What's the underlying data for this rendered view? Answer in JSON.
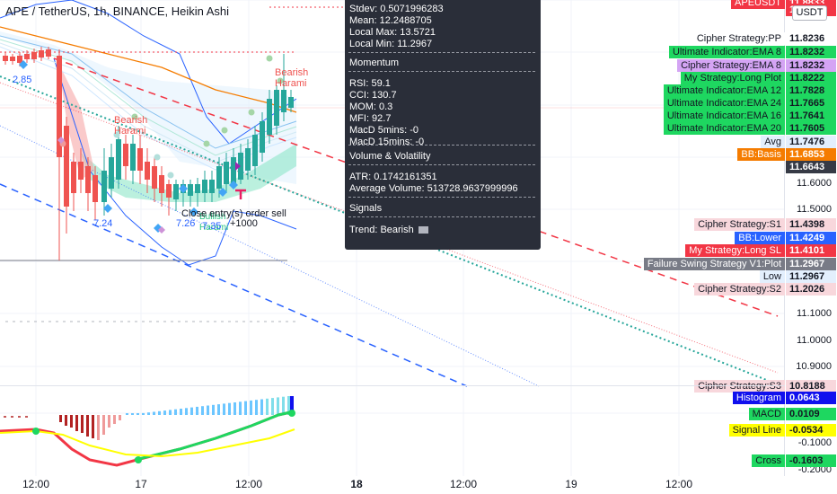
{
  "header": {
    "title": "APE / TetherUS, 1h, BINANCE, Heikin Ashi"
  },
  "tooltip": {
    "stats": [
      "Stdev: 0.5071996283",
      "Mean: 12.2488705",
      "Local Max: 13.5721",
      "Local Min: 11.2967"
    ],
    "momentum_title": "Momentum",
    "momentum": [
      "RSI: 59.1",
      "CCI: 130.7",
      "MOM: 0.3",
      "MFI: 92.7",
      "MacD 5mins: -0",
      "MacD 15mins: -0"
    ],
    "volatility_title": "Volume & Volatility",
    "volatility": [
      "ATR: 0.1742161351",
      "Average Volume: 513728.9637999996"
    ],
    "signals_title": "Signals",
    "trend": "Trend: Bearish"
  },
  "price_scale": {
    "currency_button": "USDT",
    "ticks": [
      "11.6000",
      "11.5000",
      "11.1000",
      "11.0000",
      "10.9000",
      "-0.1000",
      "-0.2000"
    ]
  },
  "right_labels": [
    {
      "text": "APEUSDT",
      "value": "11.8833",
      "label_bg": "#f23645",
      "label_fg": "#ffffff",
      "value_bg": "#f23645",
      "value_fg": "#ffffff"
    },
    {
      "text": "",
      "value": "11.8522",
      "label_bg": "",
      "label_fg": "",
      "value_bg": "#f23645",
      "value_fg": "#ffffff"
    },
    {
      "text": "Cipher Strategy:PP",
      "value": "11.8236",
      "label_bg": "#ffffff",
      "label_fg": "#131722",
      "value_bg": "#ffffff",
      "value_fg": "#131722"
    },
    {
      "text": "Ultimate Indicator:EMA 8",
      "value": "11.8232",
      "label_bg": "#1ed760",
      "label_fg": "#131722",
      "value_bg": "#1ed760",
      "value_fg": "#131722"
    },
    {
      "text": "Cipher Strategy:EMA 8",
      "value": "11.8232",
      "label_bg": "#d4a4f4",
      "label_fg": "#131722",
      "value_bg": "#d4a4f4",
      "value_fg": "#131722"
    },
    {
      "text": "My Strategy:Long Plot",
      "value": "11.8222",
      "label_bg": "#1ed760",
      "label_fg": "#131722",
      "value_bg": "#1ed760",
      "value_fg": "#131722"
    },
    {
      "text": "Ultimate Indicator:EMA 12",
      "value": "11.7828",
      "label_bg": "#1ed760",
      "label_fg": "#131722",
      "value_bg": "#1ed760",
      "value_fg": "#131722"
    },
    {
      "text": "Ultimate Indicator:EMA 24",
      "value": "11.7665",
      "label_bg": "#1ed760",
      "label_fg": "#131722",
      "value_bg": "#1ed760",
      "value_fg": "#131722"
    },
    {
      "text": "Ultimate Indicator:EMA 16",
      "value": "11.7641",
      "label_bg": "#1ed760",
      "label_fg": "#131722",
      "value_bg": "#1ed760",
      "value_fg": "#131722"
    },
    {
      "text": "Ultimate Indicator:EMA 20",
      "value": "11.7605",
      "label_bg": "#1ed760",
      "label_fg": "#131722",
      "value_bg": "#1ed760",
      "value_fg": "#131722"
    },
    {
      "text": "Avg",
      "value": "11.7476",
      "label_bg": "#e3effd",
      "label_fg": "#131722",
      "value_bg": "#e3effd",
      "value_fg": "#131722"
    },
    {
      "text": "BB:Basis",
      "value": "11.6853",
      "label_bg": "#f57c00",
      "label_fg": "#ffffff",
      "value_bg": "#f57c00",
      "value_fg": "#ffffff"
    },
    {
      "text": "",
      "value": "11.6643",
      "label_bg": "",
      "label_fg": "",
      "value_bg": "#363a45",
      "value_fg": "#ffffff"
    },
    {
      "text": "Cipher Strategy:S1",
      "value": "11.4398",
      "label_bg": "#f8d7dc",
      "label_fg": "#131722",
      "value_bg": "#f8d7dc",
      "value_fg": "#131722"
    },
    {
      "text": "BB:Lower",
      "value": "11.4249",
      "label_bg": "#2962ff",
      "label_fg": "#ffffff",
      "value_bg": "#2962ff",
      "value_fg": "#ffffff"
    },
    {
      "text": "My Strategy:Long SL",
      "value": "11.4101",
      "label_bg": "#f23645",
      "label_fg": "#ffffff",
      "value_bg": "#f23645",
      "value_fg": "#ffffff"
    },
    {
      "text": "Failure Swing Strategy V1:Plot",
      "value": "11.2967",
      "label_bg": "#787b86",
      "label_fg": "#ffffff",
      "value_bg": "#787b86",
      "value_fg": "#ffffff"
    },
    {
      "text": "Low",
      "value": "11.2967",
      "label_bg": "#e3effd",
      "label_fg": "#131722",
      "value_bg": "#e3effd",
      "value_fg": "#131722"
    },
    {
      "text": "Cipher Strategy:S2",
      "value": "11.2026",
      "label_bg": "#f8d7dc",
      "label_fg": "#131722",
      "value_bg": "#f8d7dc",
      "value_fg": "#131722"
    },
    {
      "text": "Cipher Strategy:S3",
      "value": "10.8188",
      "label_bg": "#f8d7dc",
      "label_fg": "#131722",
      "value_bg": "#f8d7dc",
      "value_fg": "#131722"
    },
    {
      "text": "Histogram",
      "value": "0.0643",
      "label_bg": "#1010ee",
      "label_fg": "#ffffff",
      "value_bg": "#1010ee",
      "value_fg": "#ffffff"
    },
    {
      "text": "MACD",
      "value": "0.0109",
      "label_bg": "#1ed760",
      "label_fg": "#131722",
      "value_bg": "#1ed760",
      "value_fg": "#131722"
    },
    {
      "text": "Signal Line",
      "value": "-0.0534",
      "label_bg": "#ffff00",
      "label_fg": "#131722",
      "value_bg": "#ffff00",
      "value_fg": "#131722"
    },
    {
      "text": "Cross",
      "value": "-0.1603",
      "label_bg": "#1ed760",
      "label_fg": "#131722",
      "value_bg": "#1ed760",
      "value_fg": "#131722"
    }
  ],
  "chart_labels": {
    "bearish_harami_1": "Bearish\nHarami",
    "bearish_harami_2": "Bearish\nHarami",
    "close_order": "Close entry(s) order sell",
    "bullish": "Bullish\nHarami",
    "v285": "2.85",
    "v724": "7.24",
    "v726": "7.26",
    "v735": "7.35",
    "v1000": "+1000"
  },
  "time_axis": [
    "12:00",
    "17",
    "12:00",
    "18",
    "12:00",
    "19",
    "12:00"
  ],
  "colors": {
    "bull": "#26a69a",
    "bear": "#ef5350",
    "bg": "#ffffff",
    "tooltip": "#2a2e39"
  }
}
